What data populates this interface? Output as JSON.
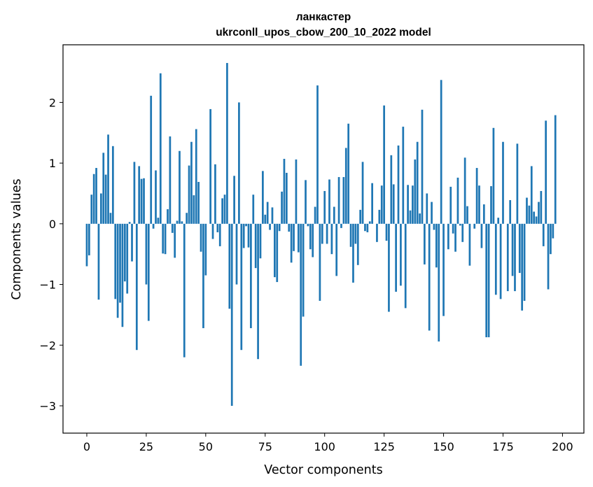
{
  "chart_data": {
    "type": "bar",
    "title_line1": "ланкастер",
    "title_line2": "ukrconll_upos_cbow_200_10_2022 model",
    "xlabel": "Vector components",
    "ylabel": "Components values",
    "xlim": [
      -10,
      209
    ],
    "ylim": [
      -3.45,
      2.95
    ],
    "xticks": [
      0,
      25,
      50,
      75,
      100,
      125,
      150,
      175,
      200
    ],
    "yticks": [
      -3,
      -2,
      -1,
      0,
      1,
      2
    ],
    "ytick_labels": [
      "−3",
      "−2",
      "−1",
      "0",
      "1",
      "2"
    ],
    "bar_color": "#1f77b4",
    "grid": false,
    "values": [
      -0.7,
      -0.52,
      0.48,
      0.82,
      0.92,
      -1.25,
      0.5,
      1.17,
      0.81,
      1.47,
      0.18,
      1.28,
      -1.24,
      -1.55,
      -1.3,
      -1.7,
      -0.95,
      -1.15,
      0.03,
      -0.62,
      1.02,
      -2.08,
      0.95,
      0.74,
      0.75,
      -1.0,
      -1.6,
      2.11,
      -0.08,
      0.88,
      0.1,
      2.48,
      -0.49,
      -0.5,
      0.24,
      1.44,
      -0.15,
      -0.56,
      0.05,
      1.2,
      0.04,
      -2.2,
      0.18,
      0.96,
      1.35,
      0.47,
      1.56,
      0.69,
      -0.46,
      -1.72,
      -0.85,
      0.0,
      1.89,
      -0.25,
      0.98,
      -0.14,
      -0.37,
      0.42,
      0.48,
      2.65,
      -1.4,
      -3.0,
      0.79,
      -1.0,
      2.0,
      -2.08,
      -0.4,
      -0.04,
      -0.39,
      -1.72,
      0.48,
      -0.73,
      -2.23,
      -0.57,
      0.87,
      0.15,
      0.36,
      -0.1,
      0.27,
      -0.88,
      -0.96,
      -0.12,
      0.53,
      1.07,
      0.84,
      -0.13,
      -0.64,
      -0.45,
      1.06,
      -0.47,
      -2.34,
      -1.53,
      0.72,
      -0.04,
      -0.42,
      -0.55,
      0.28,
      2.28,
      -1.27,
      -0.33,
      0.54,
      -0.33,
      0.73,
      -0.5,
      0.28,
      -0.86,
      0.77,
      -0.07,
      0.77,
      1.25,
      1.65,
      -0.38,
      -0.97,
      -0.33,
      -0.68,
      0.23,
      1.02,
      -0.12,
      -0.14,
      0.04,
      0.67,
      0.0,
      -0.3,
      0.23,
      0.63,
      1.95,
      -0.28,
      -1.45,
      1.13,
      0.65,
      -1.12,
      1.29,
      -1.02,
      1.6,
      -1.39,
      0.64,
      0.22,
      0.63,
      1.06,
      1.35,
      0.17,
      1.88,
      -0.67,
      0.5,
      -1.76,
      0.36,
      -0.1,
      -0.72,
      -1.94,
      2.37,
      -1.52,
      0.0,
      -0.42,
      0.61,
      -0.16,
      -0.46,
      0.76,
      -0.03,
      -0.3,
      1.09,
      0.29,
      -0.69,
      0.0,
      -0.08,
      0.92,
      0.63,
      -0.4,
      0.32,
      -1.87,
      -1.87,
      0.62,
      1.58,
      -1.17,
      0.1,
      -1.24,
      1.35,
      0.0,
      -1.11,
      0.39,
      -0.86,
      -1.11,
      1.32,
      -0.81,
      -1.43,
      -1.27,
      0.43,
      0.3,
      0.95,
      0.2,
      0.12,
      0.36,
      0.54,
      -0.37,
      1.7,
      -1.08,
      -0.5,
      -0.24,
      1.79
    ]
  }
}
